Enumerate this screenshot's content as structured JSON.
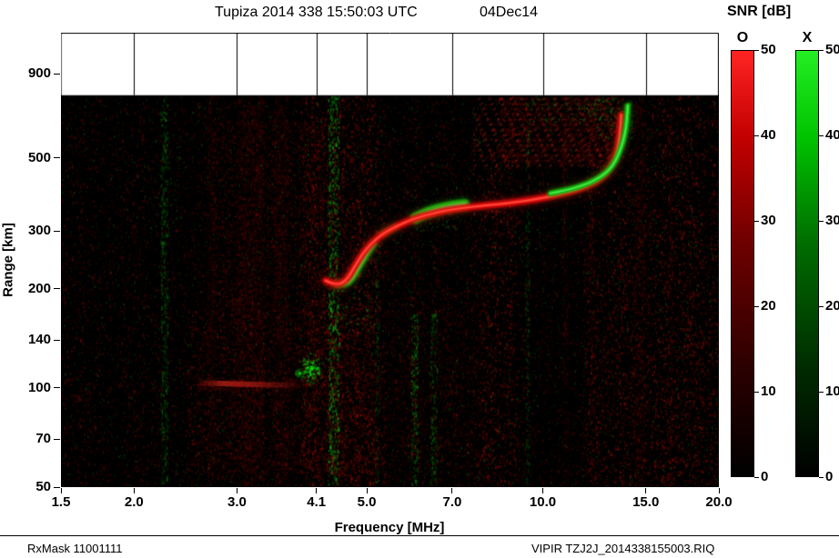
{
  "title": {
    "main": "Tupiza 2014 338 15:50:03 UTC",
    "date": "04Dec14"
  },
  "colorbar": {
    "title": "SNR [dB]",
    "o_label": "O",
    "x_label": "X",
    "ticks": [
      0,
      10,
      20,
      30,
      40,
      50
    ],
    "max": 50,
    "o_color": "#ff2424",
    "x_color": "#24ee24",
    "o_gradient": [
      "#000000",
      "#2a0000",
      "#6e0000",
      "#c40000",
      "#ff2424"
    ],
    "x_gradient": [
      "#000000",
      "#002a00",
      "#006e00",
      "#00c400",
      "#24ee24"
    ],
    "gradient_stops": [
      0,
      25,
      55,
      80,
      100
    ]
  },
  "footer": {
    "left": "RxMask 11001111",
    "right": "VIPIR  TZJ2J_2014338155003.RIQ"
  },
  "chart_data": {
    "type": "heatmap",
    "title": "Tupiza 2014 338 15:50:03 UTC 04Dec14",
    "xlabel": "Frequency [MHz]",
    "ylabel": "Range [km]",
    "x_scale": "log",
    "y_scale": "log",
    "x_range": [
      1.5,
      20
    ],
    "y_range": [
      50,
      1200
    ],
    "x_ticks": [
      {
        "v": 1.5,
        "label": "1.5"
      },
      {
        "v": 2.0,
        "label": "2.0"
      },
      {
        "v": 3.0,
        "label": "3.0"
      },
      {
        "v": 4.1,
        "label": "4.1"
      },
      {
        "v": 5.0,
        "label": "5.0"
      },
      {
        "v": 7.0,
        "label": "7.0"
      },
      {
        "v": 10.0,
        "label": "10.0"
      },
      {
        "v": 15.0,
        "label": "15.0"
      },
      {
        "v": 20.0,
        "label": "20.0"
      }
    ],
    "y_ticks": [
      {
        "v": 900,
        "label": "900"
      },
      {
        "v": 500,
        "label": "500"
      },
      {
        "v": 300,
        "label": "300"
      },
      {
        "v": 200,
        "label": "200"
      },
      {
        "v": 140,
        "label": "140"
      },
      {
        "v": 100,
        "label": "100"
      },
      {
        "v": 70,
        "label": "70"
      },
      {
        "v": 50,
        "label": "50"
      }
    ],
    "data_top_km": 775,
    "background_color": "#000000",
    "o_trace_color": "#e81010",
    "x_trace_color": "#12c212",
    "o_trace": [
      [
        4.25,
        212
      ],
      [
        4.38,
        207
      ],
      [
        4.52,
        207
      ],
      [
        4.65,
        216
      ],
      [
        4.78,
        236
      ],
      [
        4.92,
        256
      ],
      [
        5.08,
        274
      ],
      [
        5.28,
        291
      ],
      [
        5.52,
        305
      ],
      [
        5.82,
        319
      ],
      [
        6.12,
        330
      ],
      [
        6.48,
        339
      ],
      [
        6.88,
        347
      ],
      [
        7.3,
        352
      ],
      [
        7.8,
        357
      ],
      [
        8.3,
        361
      ],
      [
        8.9,
        366
      ],
      [
        9.5,
        372
      ],
      [
        10.1,
        379
      ],
      [
        10.7,
        388
      ],
      [
        11.3,
        397
      ],
      [
        11.8,
        408
      ],
      [
        12.3,
        422
      ],
      [
        12.7,
        440
      ],
      [
        13.0,
        462
      ],
      [
        13.25,
        492
      ],
      [
        13.42,
        530
      ],
      [
        13.52,
        575
      ],
      [
        13.58,
        625
      ],
      [
        13.62,
        675
      ]
    ],
    "x_trace_segments": [
      {
        "w": 4,
        "pts": [
          [
            4.45,
            206
          ],
          [
            4.6,
            206
          ],
          [
            4.72,
            214
          ],
          [
            4.85,
            233
          ],
          [
            5.0,
            255
          ],
          [
            5.15,
            275
          ]
        ]
      },
      {
        "w": 9,
        "pts": [
          [
            6.05,
            328
          ],
          [
            6.3,
            340
          ],
          [
            6.6,
            349
          ],
          [
            6.9,
            355
          ],
          [
            7.15,
            359
          ],
          [
            7.35,
            361
          ]
        ]
      },
      {
        "w": 4,
        "pts": [
          [
            10.3,
            390
          ],
          [
            10.9,
            398
          ],
          [
            11.5,
            408
          ],
          [
            12.1,
            422
          ],
          [
            12.6,
            440
          ],
          [
            13.0,
            460
          ],
          [
            13.3,
            488
          ],
          [
            13.55,
            525
          ],
          [
            13.75,
            570
          ],
          [
            13.88,
            620
          ],
          [
            13.94,
            675
          ],
          [
            13.97,
            720
          ]
        ]
      },
      {
        "w": 3,
        "pts": [
          [
            5.3,
            293
          ],
          [
            5.6,
            309
          ]
        ]
      }
    ],
    "e_layer": {
      "f1": 2.55,
      "f2": 3.95,
      "r": 103,
      "fuzz": 320
    },
    "e_green_blobs": [
      {
        "f": 4.0,
        "r": 115,
        "n": 110,
        "rx": 14,
        "ry": 18
      },
      {
        "f": 3.82,
        "r": 112,
        "n": 18,
        "rx": 5,
        "ry": 6
      }
    ],
    "rfi_green_columns": [
      {
        "f": 4.38,
        "w": 6,
        "alpha": 0.45,
        "r1": 50,
        "r2": 775
      },
      {
        "f": 2.25,
        "w": 4,
        "alpha": 0.25,
        "r1": 50,
        "r2": 775
      },
      {
        "f": 6.02,
        "w": 4,
        "alpha": 0.3,
        "r1": 50,
        "r2": 170
      },
      {
        "f": 6.5,
        "w": 4,
        "alpha": 0.25,
        "r1": 50,
        "r2": 170
      },
      {
        "f": 9.4,
        "w": 2,
        "alpha": 0.15,
        "r1": 50,
        "r2": 775
      },
      {
        "f": 5.2,
        "w": 2,
        "alpha": 0.15,
        "r1": 50,
        "r2": 250
      }
    ],
    "red_columns": [
      {
        "f": 3.15,
        "w": 14,
        "alpha": 0.1,
        "r1": 50,
        "r2": 775
      },
      {
        "f": 3.55,
        "w": 8,
        "alpha": 0.08,
        "r1": 50,
        "r2": 775
      },
      {
        "f": 2.7,
        "w": 4,
        "alpha": 0.08,
        "r1": 50,
        "r2": 775
      },
      {
        "f": 14.6,
        "w": 6,
        "alpha": 0.1,
        "r1": 50,
        "r2": 775
      },
      {
        "f": 10.9,
        "w": 3,
        "alpha": 0.08,
        "r1": 50,
        "r2": 775
      },
      {
        "f": 12.1,
        "w": 3,
        "alpha": 0.07,
        "r1": 50,
        "r2": 775
      },
      {
        "f": 16.5,
        "w": 2,
        "alpha": 0.06,
        "r1": 50,
        "r2": 775
      }
    ],
    "red_haze": [
      {
        "f1": 2.45,
        "f2": 4.6,
        "r1": 55,
        "r2": 175,
        "n": 2500,
        "alpha": 0.16
      },
      {
        "f1": 2.7,
        "f2": 4.3,
        "r1": 170,
        "r2": 650,
        "n": 2000,
        "alpha": 0.12
      },
      {
        "f1": 8.5,
        "f2": 13.5,
        "r1": 480,
        "r2": 770,
        "n": 2200,
        "alpha": 0.14
      },
      {
        "f1": 5.5,
        "f2": 8.0,
        "r1": 55,
        "r2": 200,
        "n": 1200,
        "alpha": 0.1
      },
      {
        "f1": 4.6,
        "f2": 5.4,
        "r1": 55,
        "r2": 130,
        "n": 500,
        "alpha": 0.1
      }
    ],
    "green_boxes": [
      {
        "f1": 12.2,
        "f2": 14.2,
        "r1": 560,
        "r2": 760,
        "n": 130,
        "alpha": 0.3
      },
      {
        "f1": 9.5,
        "f2": 13.3,
        "r1": 640,
        "r2": 770,
        "n": 150,
        "alpha": 0.25
      },
      {
        "f1": 4.3,
        "f2": 5.2,
        "r1": 150,
        "r2": 210,
        "n": 60,
        "alpha": 0.3
      },
      {
        "f1": 6.0,
        "f2": 7.2,
        "r1": 300,
        "r2": 340,
        "n": 50,
        "alpha": 0.25
      },
      {
        "f1": 2.1,
        "f2": 2.4,
        "r1": 300,
        "r2": 600,
        "n": 70,
        "alpha": 0.22
      }
    ],
    "fringes": {
      "f1": 7.6,
      "f2": 13.2,
      "r1": 470,
      "r2": 770,
      "count": 24,
      "alpha": 0.28
    },
    "noise": {
      "seed": 1337,
      "red_density": 30,
      "green_density": 6
    }
  }
}
